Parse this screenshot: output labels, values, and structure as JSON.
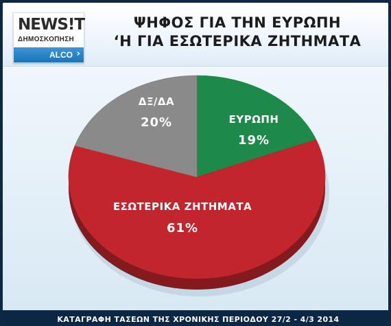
{
  "logo": {
    "brand": "NEWS!T",
    "subtitle": "ΔΗΜΟΣΚΟΠΗΣΗ",
    "pollster": "ALCO"
  },
  "title": {
    "line1": "ΨΗΦΟΣ ΓΙΑ ΤΗΝ ΕΥΡΩΠΗ",
    "line2": "‘Η ΓΙΑ ΕΣΩΤΕΡΙΚΑ ΖΗΤΗΜΑΤΑ"
  },
  "footer": {
    "text": "ΚΑΤΑΓΡΑΦΗ ΤΑΣΕΩΝ ΤΗΣ ΧΡΟΝΙΚΗΣ ΠΕΡΙΟΔΟΥ 27/2  -  4/3 2014"
  },
  "colors": {
    "europe": "#1e8a4a",
    "domestic": "#c2252c",
    "dk_na": "#8a8a8a",
    "logo_bar": "#1b74b8",
    "footer": "#0c2744"
  },
  "chart_data": {
    "type": "pie",
    "style": "3d",
    "title": "ΨΗΦΟΣ ΓΙΑ ΤΗΝ ΕΥΡΩΠΗ ‘Η ΓΙΑ ΕΣΩΤΕΡΙΚΑ ΖΗΤΗΜΑΤΑ",
    "unit": "%",
    "slices": [
      {
        "label": "ΕΥΡΩΠΗ",
        "value": 19,
        "display": "19%",
        "color": "#1e8a4a"
      },
      {
        "label": "ΕΣΩΤΕΡΙΚΑ ΖΗΤΗΜΑΤΑ",
        "value": 61,
        "display": "61%",
        "color": "#c2252c"
      },
      {
        "label": "ΔΞ/ΔΑ",
        "value": 20,
        "display": "20%",
        "color": "#8a8a8a"
      }
    ],
    "legend": "none"
  }
}
